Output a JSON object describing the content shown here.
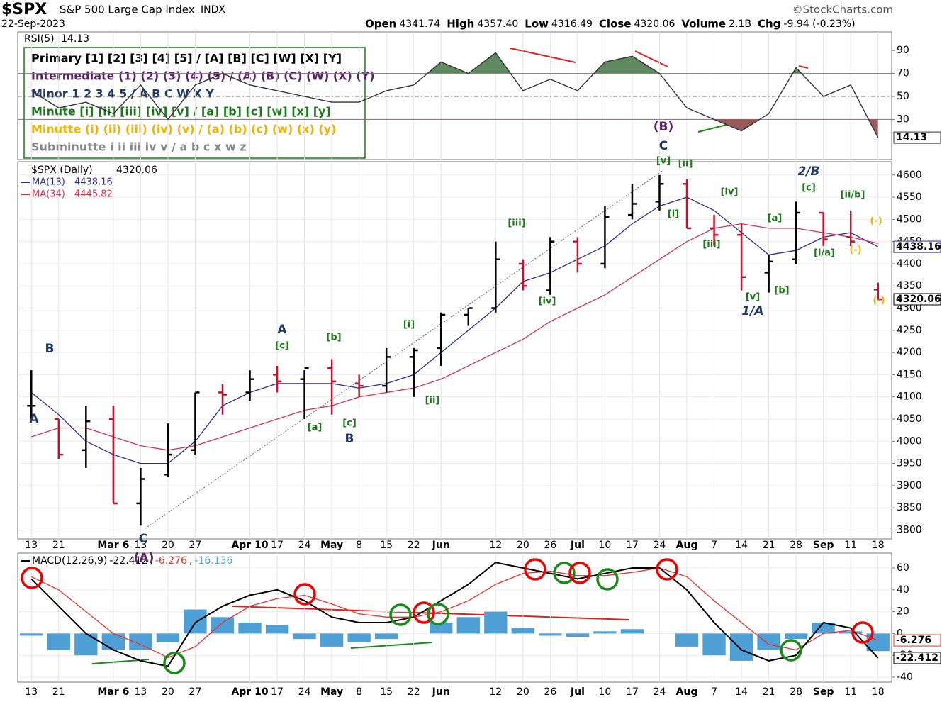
{
  "chart_data": {
    "type": "ohlc",
    "title": "$SPX",
    "subtitle": "S&P 500 Large Cap Index",
    "exchange": "INDX",
    "date": "22-Sep-2023",
    "source": "©StockCharts.com",
    "quote": [
      {
        "label": "Open",
        "value": "4341.74"
      },
      {
        "label": "High",
        "value": "4357.40"
      },
      {
        "label": "Low",
        "value": "4316.49"
      },
      {
        "label": "Close",
        "value": "4320.06"
      },
      {
        "label": "Volume",
        "value": "2.1B"
      },
      {
        "label": "Chg",
        "value": "-9.94 (-0.23%)"
      }
    ],
    "wave_legend": [
      {
        "text": "Primary [1] [2] [3] [4] [5] / [A] [B] [C] [W] [X] [Y]",
        "color": "#000000"
      },
      {
        "text": "Intermediate (1) (2) (3) (4) (5) / (A) (B) (C) (W) (X) (Y)",
        "color": "#5b2066"
      },
      {
        "text": "Minor 1 2 3 4 5 / A B C W X Y",
        "color": "#1f3864"
      },
      {
        "text": "Minute [i] [ii] [iii] [iv] [v] / [a] [b] [c] [w] [x] [y]",
        "color": "#1a7a1a"
      },
      {
        "text": "Minutte (i) (ii) (iii) (iv) (v) / (a) (b) (c) (w) (x) (y)",
        "color": "#f0b400"
      },
      {
        "text": "Subminutte i ii iii iv v / a b c x w z",
        "color": "#888888"
      }
    ],
    "price_label": "$SPX (Daily)",
    "categories": [
      "13",
      "21",
      null,
      "Mar 6",
      "13",
      "20",
      "27",
      null,
      "Apr 10",
      "17",
      "24",
      "May",
      "8",
      "15",
      "22",
      "Jun",
      null,
      "12",
      "20",
      "26",
      "Jul",
      "10",
      "17",
      "24",
      "Aug",
      "7",
      "14",
      "21",
      "28",
      "Sep",
      "11",
      "18"
    ],
    "open": [
      4080,
      4050,
      3980,
      4050,
      3860,
      3925,
      3980,
      4110,
      4110,
      4150,
      4140,
      4165,
      4130,
      4125,
      4190,
      4210,
      4285,
      4300,
      4400,
      4340,
      4450,
      4400,
      4510,
      4540,
      4580,
      4480,
      4465,
      4380,
      4410,
      4515,
      4460,
      4341.74
    ],
    "high": [
      4160,
      4050,
      4080,
      4080,
      3940,
      4040,
      4110,
      4130,
      4160,
      4170,
      4160,
      4185,
      4150,
      4210,
      4210,
      4290,
      4300,
      4450,
      4410,
      4460,
      4460,
      4530,
      4580,
      4600,
      4590,
      4510,
      4490,
      4420,
      4540,
      4515,
      4520,
      4357.4
    ],
    "low": [
      4050,
      3960,
      3940,
      3860,
      3810,
      3920,
      3970,
      4060,
      4090,
      4110,
      4050,
      4060,
      4100,
      4110,
      4100,
      4170,
      4260,
      4290,
      4340,
      4330,
      4380,
      4390,
      4500,
      4520,
      4480,
      4440,
      4340,
      4335,
      4400,
      4440,
      4440,
      4316.49
    ],
    "close": [
      4080,
      3970,
      4045,
      3860,
      3915,
      3970,
      4110,
      4105,
      4140,
      4135,
      4165,
      4135,
      4125,
      4190,
      4205,
      4285,
      4300,
      4410,
      4350,
      4450,
      4400,
      4505,
      4535,
      4580,
      4480,
      4465,
      4370,
      4405,
      4515,
      4455,
      4450,
      4320.06
    ],
    "up_color": "#000000",
    "down_color": "#c8102e",
    "series": [
      {
        "name": "MA(13)",
        "color": "#2b2f8f",
        "values": [
          4110,
          4060,
          4000,
          3970,
          3950,
          3950,
          4000,
          4080,
          4110,
          4130,
          4130,
          4130,
          4120,
          4130,
          4150,
          4200,
          4250,
          4300,
          4360,
          4380,
          4410,
          4440,
          4490,
          4530,
          4550,
          4520,
          4470,
          4420,
          4430,
          4460,
          4470,
          4438.16
        ]
      },
      {
        "name": "MA(34)",
        "color": "#d0344a",
        "values": [
          4010,
          4030,
          4030,
          4010,
          3990,
          3980,
          3990,
          4010,
          4030,
          4050,
          4070,
          4080,
          4100,
          4110,
          4120,
          4140,
          4170,
          4200,
          4230,
          4270,
          4300,
          4330,
          4370,
          4410,
          4450,
          4480,
          4490,
          4480,
          4480,
          4470,
          4460,
          4445.82
        ]
      }
    ],
    "ylim": [
      3780,
      4630
    ],
    "yticks": [
      3800,
      3850,
      3900,
      3950,
      4000,
      4050,
      4100,
      4150,
      4200,
      4250,
      4300,
      4350,
      4400,
      4450,
      4500,
      4550,
      4600
    ],
    "rsi": {
      "name": "RSI(5)",
      "color": "#333333",
      "values": [
        55,
        40,
        45,
        35,
        60,
        30,
        60,
        70,
        60,
        55,
        50,
        45,
        45,
        55,
        60,
        80,
        70,
        88,
        55,
        65,
        55,
        80,
        85,
        70,
        40,
        30,
        20,
        35,
        75,
        50,
        60,
        14.13
      ],
      "ylim": [
        0,
        100
      ],
      "yticks": [
        30,
        50,
        70,
        90
      ],
      "levels": [
        30,
        50,
        70
      ],
      "over_color": "#5f8a5f",
      "under_color": "#9a5a5a"
    },
    "macd": {
      "name": "MACD(12,26,9)",
      "separator": ",",
      "macd": {
        "color": "#000000",
        "values": [
          50,
          25,
          0,
          -15,
          -25,
          -30,
          10,
          25,
          35,
          40,
          30,
          15,
          10,
          10,
          15,
          30,
          45,
          65,
          60,
          55,
          50,
          55,
          60,
          60,
          40,
          10,
          -15,
          -25,
          -20,
          10,
          5,
          -22.412
        ]
      },
      "signal": {
        "color": "#e8322e",
        "values": [
          52,
          40,
          20,
          0,
          -10,
          -22,
          -12,
          10,
          25,
          32,
          35,
          27,
          18,
          15,
          15,
          20,
          30,
          45,
          55,
          57,
          53,
          53,
          56,
          60,
          52,
          30,
          10,
          -10,
          -15,
          0,
          3,
          -6.276
        ]
      },
      "histogram": {
        "color": "#4d9fd6",
        "values": [
          -2,
          -15,
          -20,
          -15,
          -15,
          -8,
          22,
          15,
          10,
          8,
          -5,
          -12,
          -8,
          -5,
          0,
          10,
          15,
          20,
          5,
          -2,
          -3,
          2,
          4,
          0,
          -12,
          -20,
          -25,
          -15,
          -5,
          10,
          2,
          -16.136
        ]
      },
      "ylim": [
        -45,
        68
      ],
      "yticks": [
        -40,
        -20,
        0,
        20,
        40,
        60
      ]
    },
    "annotations": [
      {
        "text": "A",
        "color": "#1f3864"
      },
      {
        "text": "B",
        "color": "#1f3864"
      },
      {
        "text": "C",
        "color": "#1f3864"
      },
      {
        "text": "(A)",
        "color": "#5b2066"
      },
      {
        "text": "A",
        "color": "#1f3864"
      },
      {
        "text": "[c]",
        "color": "#1a7a1a"
      },
      {
        "text": "[b]",
        "color": "#1a7a1a"
      },
      {
        "text": "[a]",
        "color": "#1a7a1a"
      },
      {
        "text": "[c]",
        "color": "#1a7a1a"
      },
      {
        "text": "B",
        "color": "#1f3864"
      },
      {
        "text": "[i]",
        "color": "#1a7a1a"
      },
      {
        "text": "[ii]",
        "color": "#1a7a1a"
      },
      {
        "text": "[iii]",
        "color": "#1a7a1a"
      },
      {
        "text": "[iv]",
        "color": "#1a7a1a"
      },
      {
        "text": "[v]",
        "color": "#1a7a1a"
      },
      {
        "text": "C",
        "color": "#1f3864"
      },
      {
        "text": "(B)",
        "color": "#5b2066"
      },
      {
        "text": "[ii]",
        "color": "#1a7a1a"
      },
      {
        "text": "[i]",
        "color": "#1a7a1a"
      },
      {
        "text": "[iii]",
        "color": "#1a7a1a"
      },
      {
        "text": "[iv]",
        "color": "#1a7a1a"
      },
      {
        "text": "[v]",
        "color": "#1a7a1a"
      },
      {
        "text": "1/A",
        "color": "#1f3864"
      },
      {
        "text": "[a]",
        "color": "#1a7a1a"
      },
      {
        "text": "[b]",
        "color": "#1a7a1a"
      },
      {
        "text": "[c]",
        "color": "#1a7a1a"
      },
      {
        "text": "2/B",
        "color": "#1f3864"
      },
      {
        "text": "[ii/b]",
        "color": "#1a7a1a"
      },
      {
        "text": "[i/a]",
        "color": "#1a7a1a"
      },
      {
        "text": "(-)",
        "color": "#f0b400"
      },
      {
        "text": "(-)",
        "color": "#f0b400"
      },
      {
        "text": "(-)",
        "color": "#f0b400"
      }
    ]
  }
}
